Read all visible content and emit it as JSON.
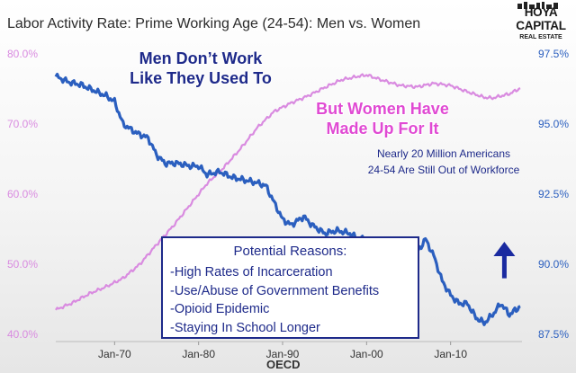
{
  "title": "Labor Activity Rate: Prime Working Age (24-54): Men vs. Women",
  "logo": {
    "line1": "HOYA CAPITAL",
    "line2": "",
    "line3": "REAL ESTATE"
  },
  "annotations": {
    "men_line1": "Men Don’t Work",
    "men_line2": "Like They Used To",
    "women_line1": "But Women Have",
    "women_line2": "Made Up For It",
    "note_line1": "Nearly 20 Million Americans",
    "note_line2": "24-54 Are Still Out of Workforce"
  },
  "reasons": {
    "title": "Potential Reasons:",
    "items": [
      "-High Rates of Incarceration",
      "-Use/Abuse of Government Benefits",
      "-Opioid Epidemic",
      "-Staying In School Longer"
    ]
  },
  "source": "OECD",
  "colors": {
    "women": "#d98be0",
    "men": "#2b5fbf",
    "axis_left": "#d98be0",
    "axis_right": "#2b5fbf",
    "arrow": "#1a2aa0",
    "text_dark": "#1e2a8a"
  },
  "chart_data": {
    "type": "line",
    "title": "Labor Activity Rate: Prime Working Age (24-54): Men vs. Women",
    "x_ticks": [
      "Jan-70",
      "Jan-80",
      "Jan-90",
      "Jan-00",
      "Jan-10"
    ],
    "x_range": [
      1963,
      2018.5
    ],
    "xlabel": "OECD",
    "y_left": {
      "ticks": [
        "40.0%",
        "50.0%",
        "60.0%",
        "70.0%",
        "80.0%"
      ],
      "range": [
        40,
        80
      ]
    },
    "y_right": {
      "ticks": [
        "87.5%",
        "90.0%",
        "92.5%",
        "95.0%",
        "97.5%"
      ],
      "range": [
        87.5,
        97.5
      ]
    },
    "grid": false,
    "series": [
      {
        "name": "Women",
        "axis": "left",
        "points": [
          [
            1963,
            43.5
          ],
          [
            1965,
            44.5
          ],
          [
            1967,
            45.8
          ],
          [
            1969,
            46.8
          ],
          [
            1971,
            48.0
          ],
          [
            1973,
            50.0
          ],
          [
            1975,
            52.8
          ],
          [
            1977,
            55.5
          ],
          [
            1979,
            58.5
          ],
          [
            1981,
            61.5
          ],
          [
            1983,
            63.8
          ],
          [
            1985,
            66.5
          ],
          [
            1987,
            69.5
          ],
          [
            1989,
            71.8
          ],
          [
            1991,
            73.0
          ],
          [
            1993,
            74.0
          ],
          [
            1995,
            75.2
          ],
          [
            1997,
            76.3
          ],
          [
            1999,
            76.8
          ],
          [
            2000,
            77.0
          ],
          [
            2002,
            76.2
          ],
          [
            2004,
            75.5
          ],
          [
            2006,
            75.3
          ],
          [
            2008,
            75.8
          ],
          [
            2010,
            75.5
          ],
          [
            2012,
            74.6
          ],
          [
            2014,
            73.8
          ],
          [
            2015,
            73.7
          ],
          [
            2017,
            74.3
          ],
          [
            2018.3,
            75.1
          ]
        ]
      },
      {
        "name": "Men",
        "axis": "right",
        "points": [
          [
            1963,
            96.7
          ],
          [
            1964.5,
            96.5
          ],
          [
            1966,
            96.4
          ],
          [
            1967.5,
            96.2
          ],
          [
            1969,
            96.0
          ],
          [
            1970,
            95.8
          ],
          [
            1971,
            95.0
          ],
          [
            1972.5,
            94.7
          ],
          [
            1974,
            94.5
          ],
          [
            1975,
            93.9
          ],
          [
            1976,
            93.6
          ],
          [
            1977.5,
            93.6
          ],
          [
            1979,
            93.5
          ],
          [
            1980,
            93.5
          ],
          [
            1981,
            93.2
          ],
          [
            1982.5,
            93.3
          ],
          [
            1984,
            93.1
          ],
          [
            1985.5,
            93.0
          ],
          [
            1987,
            92.9
          ],
          [
            1988,
            92.8
          ],
          [
            1989,
            92.2
          ],
          [
            1990,
            91.6
          ],
          [
            1991,
            91.4
          ],
          [
            1992.5,
            91.7
          ],
          [
            1993.5,
            91.4
          ],
          [
            1995,
            91.1
          ],
          [
            1996.5,
            91.2
          ],
          [
            1998,
            91.1
          ],
          [
            1999,
            90.9
          ],
          [
            2000,
            90.9
          ],
          [
            2001,
            90.5
          ],
          [
            2002,
            90.2
          ],
          [
            2003,
            90.0
          ],
          [
            2004,
            90.2
          ],
          [
            2005,
            90.1
          ],
          [
            2006,
            90.4
          ],
          [
            2007,
            90.9
          ],
          [
            2008,
            90.3
          ],
          [
            2009,
            89.4
          ],
          [
            2010,
            88.9
          ],
          [
            2011,
            88.6
          ],
          [
            2012,
            88.6
          ],
          [
            2013,
            88.1
          ],
          [
            2014,
            87.9
          ],
          [
            2015,
            88.2
          ],
          [
            2016,
            88.6
          ],
          [
            2017,
            88.2
          ],
          [
            2018.3,
            88.5
          ]
        ]
      }
    ],
    "annotation_arrow": {
      "x": 2016.4,
      "y_from": 89.5,
      "y_to": 90.8,
      "axis": "right"
    }
  }
}
